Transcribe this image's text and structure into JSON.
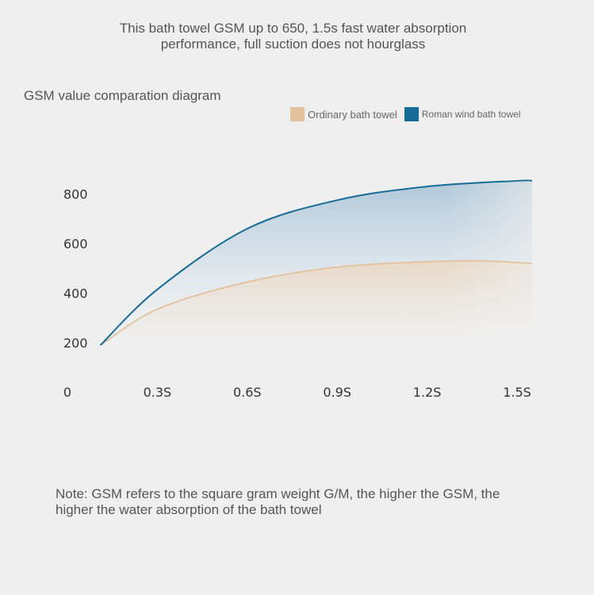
{
  "headline": {
    "line1": "This bath towel GSM up to 650, 1.5s fast water absorption",
    "line2": "performance, full suction does not hourglass"
  },
  "note": {
    "line1": "Note: GSM refers to the square gram weight G/M, the higher the GSM, the",
    "line2": "higher the water absorption of the bath towel"
  },
  "chart_data": {
    "type": "area",
    "title": "GSM value comparation diagram",
    "xlabel": "",
    "ylabel": "",
    "x_ticks": [
      "0",
      "0.3S",
      "0.6S",
      "0.9S",
      "1.2S",
      "1.5S"
    ],
    "x_tick_values": [
      0,
      0.3,
      0.6,
      0.9,
      1.2,
      1.5
    ],
    "y_ticks": [
      "200",
      "400",
      "600",
      "800"
    ],
    "y_tick_values": [
      200,
      400,
      600,
      800
    ],
    "xlim": [
      0,
      1.55
    ],
    "ylim": [
      200,
      800
    ],
    "grid": false,
    "legend_position": "top-right",
    "series": [
      {
        "name": "Ordinary bath towel",
        "color": "#e2c29c",
        "fill": "#ead9c6",
        "x": [
          0.11,
          0.3,
          0.6,
          0.9,
          1.2,
          1.38,
          1.5,
          1.55
        ],
        "y": [
          190,
          335,
          445,
          505,
          527,
          530,
          523,
          520
        ]
      },
      {
        "name": "Roman wind bath towel",
        "color": "#176b97",
        "fill": "#b9cfdf",
        "x": [
          0.11,
          0.3,
          0.6,
          0.9,
          1.2,
          1.5,
          1.55
        ],
        "y": [
          190,
          415,
          660,
          775,
          830,
          853,
          853
        ]
      }
    ]
  }
}
